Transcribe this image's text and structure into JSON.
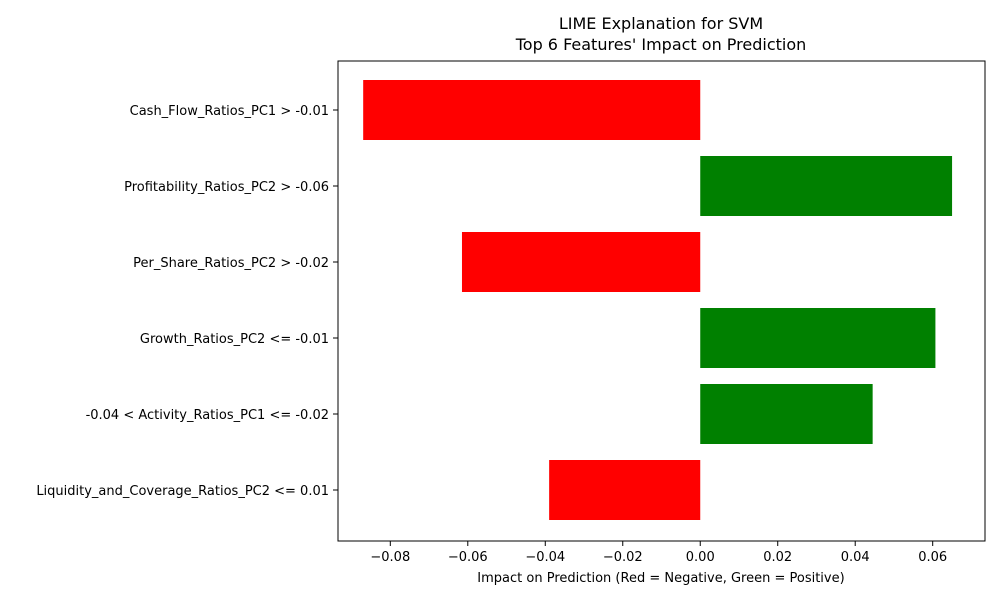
{
  "chart_data": {
    "type": "bar",
    "orientation": "horizontal",
    "title": "LIME Explanation for SVM",
    "subtitle": "Top 6 Features' Impact on Prediction",
    "xlabel": "Impact on Prediction (Red = Negative, Green = Positive)",
    "ylabel": "",
    "xlim": [
      -0.0935,
      0.0735
    ],
    "xticks": [
      -0.08,
      -0.06,
      -0.04,
      -0.02,
      0.0,
      0.02,
      0.04,
      0.06
    ],
    "xtick_labels": [
      "−0.08",
      "−0.06",
      "−0.04",
      "−0.02",
      "0.00",
      "0.02",
      "0.04",
      "0.06"
    ],
    "categories": [
      "Cash_Flow_Ratios_PC1 > -0.01",
      "Profitability_Ratios_PC2 > -0.06",
      "Per_Share_Ratios_PC2 > -0.02",
      "Growth_Ratios_PC2 <= -0.01",
      "-0.04 < Activity_Ratios_PC1 <= -0.02",
      "Liquidity_and_Coverage_Ratios_PC2 <= 0.01"
    ],
    "values": [
      -0.087,
      0.065,
      -0.0615,
      0.0607,
      0.0445,
      -0.039
    ],
    "colors": {
      "negative": "#ff0000",
      "positive": "#008000"
    },
    "grid": false,
    "legend": "none"
  }
}
